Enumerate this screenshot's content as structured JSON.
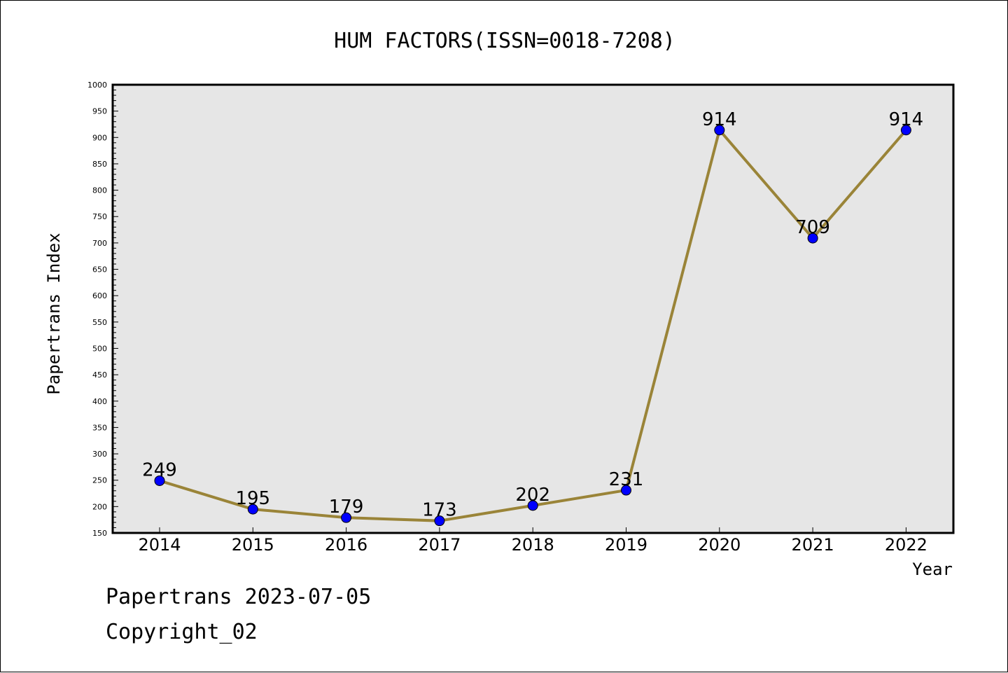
{
  "chart_data": {
    "type": "line",
    "title": "HUM FACTORS(ISSN=0018-7208)",
    "xlabel": "Year",
    "ylabel": "Papertrans Index",
    "categories": [
      "2014",
      "2015",
      "2016",
      "2017",
      "2018",
      "2019",
      "2020",
      "2021",
      "2022"
    ],
    "series": [
      {
        "values": [
          249,
          195,
          179,
          173,
          202,
          231,
          914,
          709,
          914
        ],
        "line_color": "#9a8438",
        "marker_color": "#0000ff"
      }
    ],
    "data_labels": [
      "249",
      "195",
      "179",
      "173",
      "202",
      "231",
      "914",
      "709",
      "914"
    ],
    "ylim": [
      150,
      1000
    ],
    "yticks": [
      "150",
      "200",
      "250",
      "300",
      "350",
      "400",
      "450",
      "500",
      "550",
      "600",
      "650",
      "700",
      "750",
      "800",
      "850",
      "900",
      "950",
      "1000"
    ],
    "grid": false,
    "plot_background": "#e6e6e6"
  },
  "footer": {
    "line1": "Papertrans 2023-07-05",
    "line2": "Copyright_02"
  }
}
